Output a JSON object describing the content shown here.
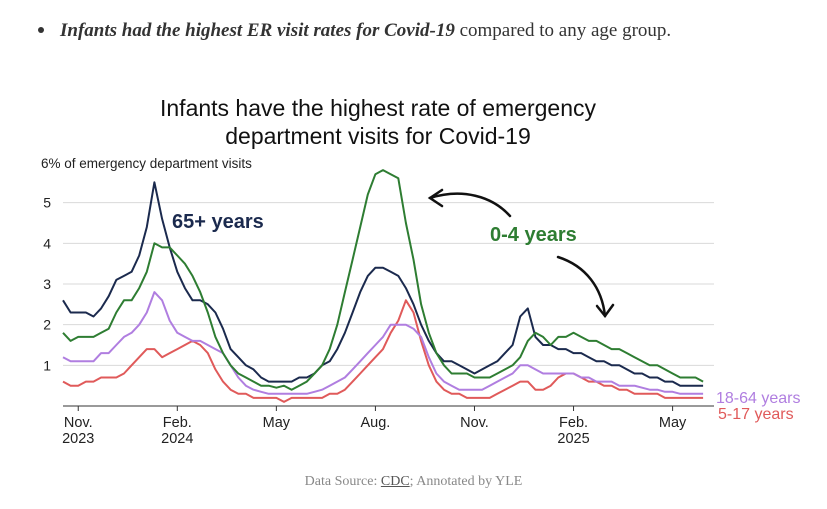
{
  "bullet": {
    "emphasis": "Infants had the highest ER visit rates for Covid-19",
    "rest": " compared to any age group."
  },
  "source": {
    "prefix": "Data Source: ",
    "link": "CDC",
    "suffix": "; Annotated by YLE"
  },
  "chart_data": {
    "type": "line",
    "title_line1": "Infants have the highest rate of emergency",
    "title_line2": "department visits for Covid-19",
    "ylabel": "6% of emergency department visits",
    "ylim": [
      0,
      6
    ],
    "y_ticks": [
      "1",
      "2",
      "3",
      "4",
      "5"
    ],
    "x_ticks": [
      {
        "label": "Nov.",
        "sub": "2023",
        "week": 2
      },
      {
        "label": "Feb.",
        "sub": "2024",
        "week": 15
      },
      {
        "label": "May",
        "sub": "",
        "week": 28
      },
      {
        "label": "Aug.",
        "sub": "",
        "week": 41
      },
      {
        "label": "Nov.",
        "sub": "",
        "week": 54
      },
      {
        "label": "Feb.",
        "sub": "2025",
        "week": 67
      },
      {
        "label": "May",
        "sub": "",
        "week": 80
      }
    ],
    "annotations": {
      "senior": "65+ years",
      "infant": "0-4 years"
    },
    "colors": {
      "infant": "#2e7d32",
      "senior": "#1b2a4e",
      "adult": "#b07ee0",
      "child": "#e05a5a"
    },
    "series": [
      {
        "name": "0-4 years",
        "key": "infant",
        "values": [
          1.8,
          1.6,
          1.7,
          1.7,
          1.7,
          1.8,
          1.9,
          2.3,
          2.6,
          2.6,
          2.9,
          3.3,
          4.0,
          3.9,
          3.9,
          3.7,
          3.5,
          3.2,
          2.8,
          2.3,
          1.7,
          1.3,
          1.0,
          0.8,
          0.7,
          0.6,
          0.5,
          0.5,
          0.45,
          0.5,
          0.4,
          0.5,
          0.6,
          0.8,
          1.0,
          1.4,
          2.0,
          2.8,
          3.6,
          4.4,
          5.2,
          5.7,
          5.8,
          5.7,
          5.6,
          4.5,
          3.6,
          2.5,
          1.8,
          1.3,
          1.0,
          0.8,
          0.8,
          0.8,
          0.7,
          0.7,
          0.7,
          0.8,
          0.9,
          1.0,
          1.2,
          1.6,
          1.8,
          1.7,
          1.5,
          1.7,
          1.7,
          1.8,
          1.7,
          1.6,
          1.6,
          1.5,
          1.4,
          1.4,
          1.3,
          1.2,
          1.1,
          1.0,
          1.0,
          0.9,
          0.8,
          0.7,
          0.7,
          0.7,
          0.6
        ]
      },
      {
        "name": "65+ years",
        "key": "senior",
        "values": [
          2.6,
          2.3,
          2.3,
          2.3,
          2.2,
          2.4,
          2.7,
          3.1,
          3.2,
          3.3,
          3.7,
          4.4,
          5.5,
          4.6,
          3.9,
          3.3,
          2.9,
          2.6,
          2.6,
          2.5,
          2.3,
          1.9,
          1.4,
          1.2,
          1.0,
          0.9,
          0.7,
          0.6,
          0.6,
          0.6,
          0.6,
          0.7,
          0.7,
          0.8,
          1.0,
          1.1,
          1.4,
          1.8,
          2.3,
          2.8,
          3.2,
          3.4,
          3.4,
          3.3,
          3.2,
          2.9,
          2.5,
          2.0,
          1.6,
          1.3,
          1.1,
          1.1,
          1.0,
          0.9,
          0.8,
          0.9,
          1.0,
          1.1,
          1.3,
          1.5,
          2.2,
          2.4,
          1.7,
          1.5,
          1.5,
          1.4,
          1.4,
          1.3,
          1.3,
          1.2,
          1.1,
          1.1,
          1.0,
          1.0,
          0.9,
          0.8,
          0.8,
          0.7,
          0.7,
          0.6,
          0.6,
          0.5,
          0.5,
          0.5,
          0.5
        ]
      },
      {
        "name": "18-64 years",
        "key": "adult",
        "values": [
          1.2,
          1.1,
          1.1,
          1.1,
          1.1,
          1.3,
          1.3,
          1.5,
          1.7,
          1.8,
          2.0,
          2.3,
          2.8,
          2.6,
          2.1,
          1.8,
          1.7,
          1.6,
          1.6,
          1.5,
          1.4,
          1.3,
          1.0,
          0.7,
          0.5,
          0.4,
          0.35,
          0.3,
          0.3,
          0.3,
          0.3,
          0.3,
          0.3,
          0.35,
          0.4,
          0.5,
          0.6,
          0.7,
          0.9,
          1.1,
          1.3,
          1.5,
          1.7,
          2.0,
          2.0,
          2.0,
          1.9,
          1.7,
          1.2,
          0.8,
          0.6,
          0.5,
          0.4,
          0.4,
          0.4,
          0.4,
          0.5,
          0.6,
          0.7,
          0.8,
          1.0,
          1.0,
          0.9,
          0.8,
          0.8,
          0.8,
          0.8,
          0.8,
          0.7,
          0.7,
          0.6,
          0.6,
          0.6,
          0.5,
          0.5,
          0.5,
          0.45,
          0.4,
          0.4,
          0.35,
          0.35,
          0.3,
          0.3,
          0.3,
          0.3
        ]
      },
      {
        "name": "5-17 years",
        "key": "child",
        "values": [
          0.6,
          0.5,
          0.5,
          0.6,
          0.6,
          0.7,
          0.7,
          0.7,
          0.8,
          1.0,
          1.2,
          1.4,
          1.4,
          1.2,
          1.3,
          1.4,
          1.5,
          1.6,
          1.5,
          1.3,
          0.9,
          0.6,
          0.4,
          0.3,
          0.3,
          0.2,
          0.2,
          0.2,
          0.2,
          0.1,
          0.2,
          0.2,
          0.2,
          0.2,
          0.2,
          0.3,
          0.3,
          0.4,
          0.6,
          0.8,
          1.0,
          1.2,
          1.4,
          1.8,
          2.1,
          2.6,
          2.3,
          1.6,
          1.0,
          0.6,
          0.4,
          0.3,
          0.3,
          0.2,
          0.2,
          0.2,
          0.2,
          0.3,
          0.4,
          0.5,
          0.6,
          0.6,
          0.4,
          0.4,
          0.5,
          0.7,
          0.8,
          0.8,
          0.7,
          0.6,
          0.6,
          0.5,
          0.5,
          0.4,
          0.4,
          0.3,
          0.3,
          0.3,
          0.3,
          0.2,
          0.2,
          0.2,
          0.2,
          0.2,
          0.2
        ]
      }
    ]
  }
}
